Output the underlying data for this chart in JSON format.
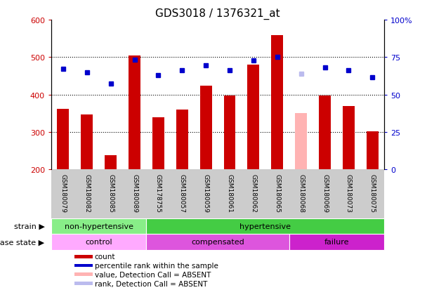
{
  "title": "GDS3018 / 1376321_at",
  "samples": [
    "GSM180079",
    "GSM180082",
    "GSM180085",
    "GSM180089",
    "GSM178755",
    "GSM180057",
    "GSM180059",
    "GSM180061",
    "GSM180062",
    "GSM180065",
    "GSM180068",
    "GSM180069",
    "GSM180073",
    "GSM180075"
  ],
  "counts": [
    362,
    347,
    238,
    505,
    340,
    360,
    424,
    398,
    480,
    558,
    350,
    397,
    370,
    302
  ],
  "percentile_ranks": [
    468,
    460,
    430,
    493,
    452,
    465,
    478,
    465,
    492,
    500,
    455,
    473,
    465,
    447
  ],
  "absent_mask": [
    false,
    false,
    false,
    false,
    false,
    false,
    false,
    false,
    false,
    false,
    true,
    false,
    false,
    false
  ],
  "bar_color_normal": "#cc0000",
  "bar_color_absent": "#ffb3b3",
  "dot_color_normal": "#0000cc",
  "dot_color_absent": "#bbbbee",
  "ylim_left": [
    200,
    600
  ],
  "ylim_right": [
    0,
    100
  ],
  "yticks_left": [
    200,
    300,
    400,
    500,
    600
  ],
  "yticks_right": [
    0,
    25,
    50,
    75,
    100
  ],
  "ytick_labels_right": [
    "0",
    "25",
    "50",
    "75",
    "100%"
  ],
  "grid_vals": [
    300,
    400,
    500
  ],
  "strain_groups": [
    {
      "label": "non-hypertensive",
      "start": 0,
      "end": 4,
      "color": "#88ee88"
    },
    {
      "label": "hypertensive",
      "start": 4,
      "end": 14,
      "color": "#44cc44"
    }
  ],
  "disease_groups": [
    {
      "label": "control",
      "start": 0,
      "end": 4,
      "color": "#ffaaff"
    },
    {
      "label": "compensated",
      "start": 4,
      "end": 10,
      "color": "#dd55dd"
    },
    {
      "label": "failure",
      "start": 10,
      "end": 14,
      "color": "#cc22cc"
    }
  ],
  "legend_items": [
    {
      "label": "count",
      "color": "#cc0000"
    },
    {
      "label": "percentile rank within the sample",
      "color": "#0000cc"
    },
    {
      "label": "value, Detection Call = ABSENT",
      "color": "#ffb3b3"
    },
    {
      "label": "rank, Detection Call = ABSENT",
      "color": "#bbbbee"
    }
  ],
  "bar_width": 0.5
}
